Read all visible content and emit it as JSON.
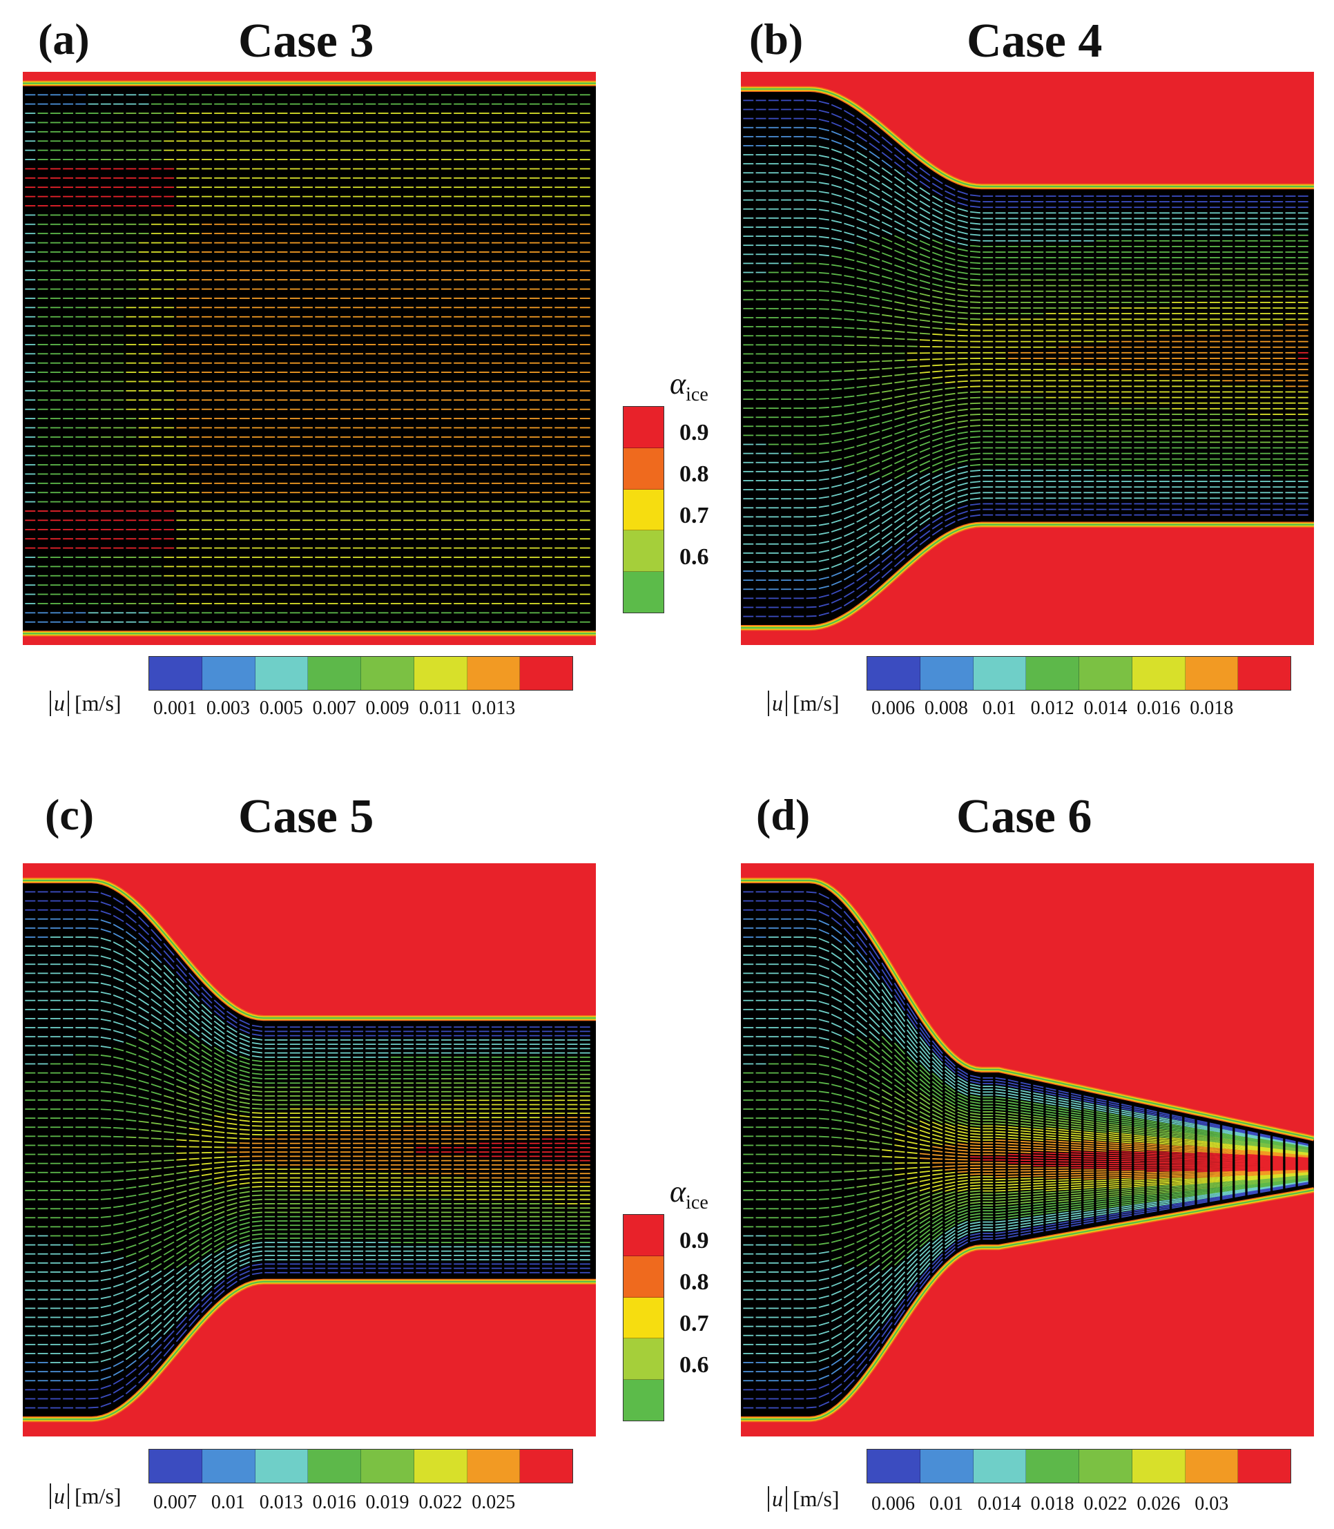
{
  "panels": [
    {
      "label": "(a)",
      "title": "Case 3",
      "shape": {
        "topTip": 0.02,
        "topExit": 0.02,
        "botTip": 0.02,
        "botExit": 0.02,
        "mid": 0.05,
        "flow": "slow"
      },
      "colorbar": {
        "unit_prefix": "u",
        "unit": "[m/s]",
        "ticks": [
          "0.001",
          "0.003",
          "0.005",
          "0.007",
          "0.009",
          "0.011",
          "0.013"
        ]
      }
    },
    {
      "label": "(b)",
      "title": "Case 4",
      "shape": {
        "topTip": 0.03,
        "topExit": 0.2,
        "botTip": 0.03,
        "botExit": 0.21,
        "mid": 0.2,
        "flow": "fast"
      },
      "colorbar": {
        "unit_prefix": "u",
        "unit": "[m/s]",
        "ticks": [
          "0.006",
          "0.008",
          "0.01",
          "0.012",
          "0.014",
          "0.016",
          "0.018"
        ]
      }
    },
    {
      "label": "(c)",
      "title": "Case 5",
      "shape": {
        "topTip": 0.03,
        "topExit": 0.27,
        "botTip": 0.03,
        "botExit": 0.27,
        "mid": 0.26,
        "flow": "mid"
      },
      "colorbar": {
        "unit_prefix": "u",
        "unit": "[m/s]",
        "ticks": [
          "0.007",
          "0.01",
          "0.013",
          "0.016",
          "0.019",
          "0.022",
          "0.025"
        ]
      }
    },
    {
      "label": "(d)",
      "title": "Case 6",
      "shape": {
        "topTip": 0.03,
        "topExit": 0.36,
        "botTip": 0.03,
        "botExit": 0.33,
        "mid": 0.24,
        "flow": "mid"
      },
      "colorbar": {
        "unit_prefix": "u",
        "unit": "[m/s]",
        "ticks": [
          "0.006",
          "0.01",
          "0.014",
          "0.018",
          "0.022",
          "0.026",
          "0.03"
        ]
      }
    }
  ],
  "alpha_legend": {
    "symbol": "α",
    "subscript": "ice",
    "ticks": [
      "0.9",
      "0.8",
      "0.7",
      "0.6"
    ],
    "colors": [
      "#e8222a",
      "#ef6a1e",
      "#f6dd10",
      "#a5cf3a",
      "#5cbb4a"
    ]
  },
  "velocity_colors": [
    "#3b4cc0",
    "#4a8ed6",
    "#6fcfc8",
    "#5db84a",
    "#7bc143",
    "#d8e02a",
    "#f29a23",
    "#e8222a"
  ]
}
